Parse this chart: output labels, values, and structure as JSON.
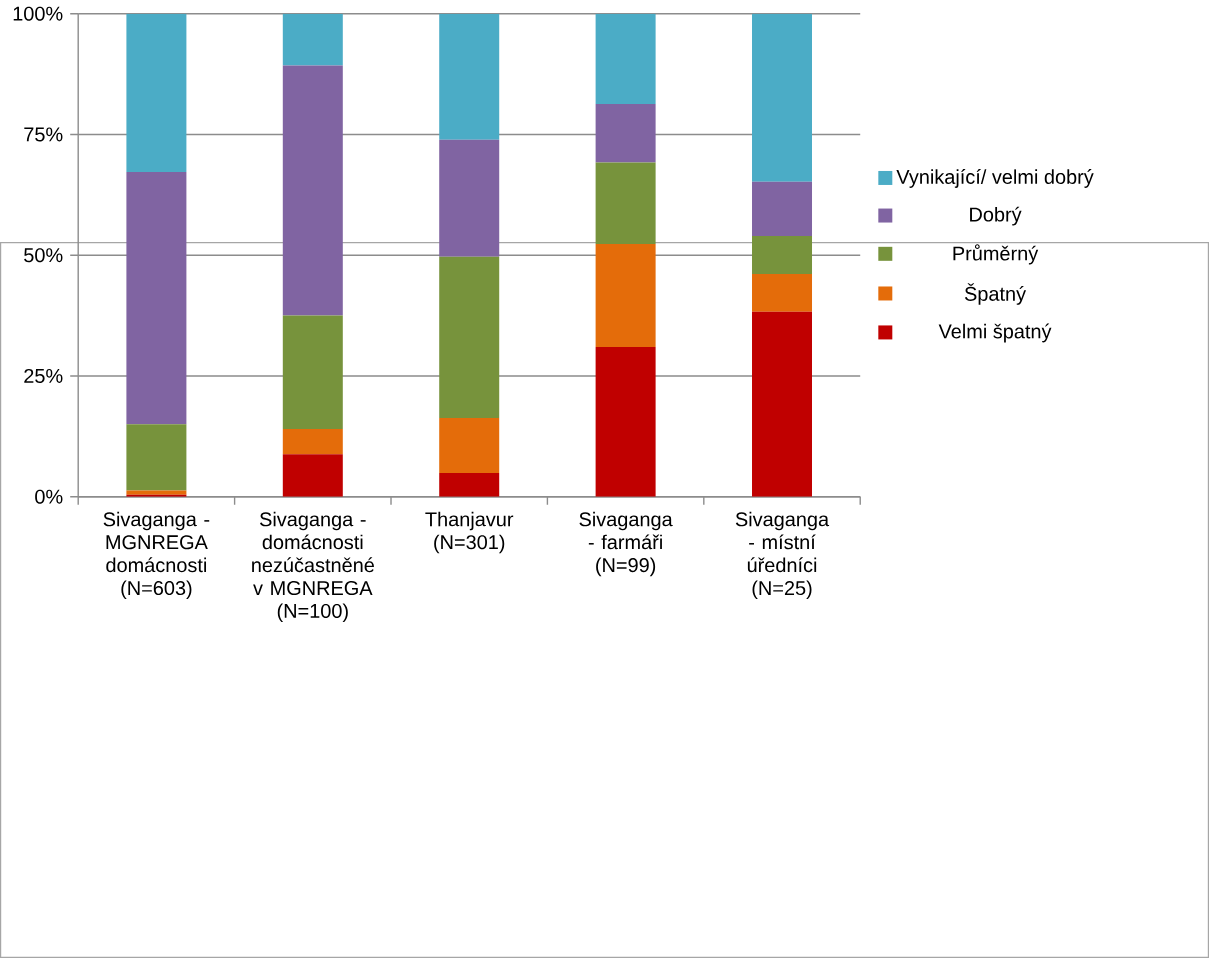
{
  "chart_data": {
    "type": "bar",
    "stacked": true,
    "categories": [
      "Sivaganga - MGNREGA domácnosti (N=603)",
      "Sivaganga - domácnosti nezúčastněné v MGNREGA (N=100)",
      "Thanjavur (N=301)",
      "Sivaganga - farmáři (N=99)",
      "Sivaganga - místní úředníci (N=25)"
    ],
    "series": [
      {
        "name": "Velmi špatný",
        "color": "#c00000",
        "values": [
          0.4,
          8.8,
          4.9,
          31.0,
          38.3
        ]
      },
      {
        "name": "Špatný",
        "color": "#e46c0a",
        "values": [
          0.9,
          5.2,
          11.4,
          21.3,
          7.8
        ]
      },
      {
        "name": "Průměrný",
        "color": "#77933c",
        "values": [
          13.7,
          23.5,
          33.4,
          16.9,
          7.9
        ]
      },
      {
        "name": "Dobrý",
        "color": "#8064a2",
        "values": [
          52.2,
          51.8,
          24.2,
          12.1,
          11.2
        ]
      },
      {
        "name": "Vynikající/ velmi dobrý",
        "color": "#4bacc6",
        "values": [
          32.8,
          10.7,
          26.1,
          18.7,
          34.8
        ]
      }
    ],
    "ylim": [
      0,
      100
    ],
    "yticks": [
      {
        "value": 0,
        "label": "0%"
      },
      {
        "value": 25,
        "label": "25%"
      },
      {
        "value": 50,
        "label": "50%"
      },
      {
        "value": 75,
        "label": "75%"
      },
      {
        "value": 100,
        "label": "100%"
      }
    ],
    "grid": "y",
    "legend": "right"
  }
}
